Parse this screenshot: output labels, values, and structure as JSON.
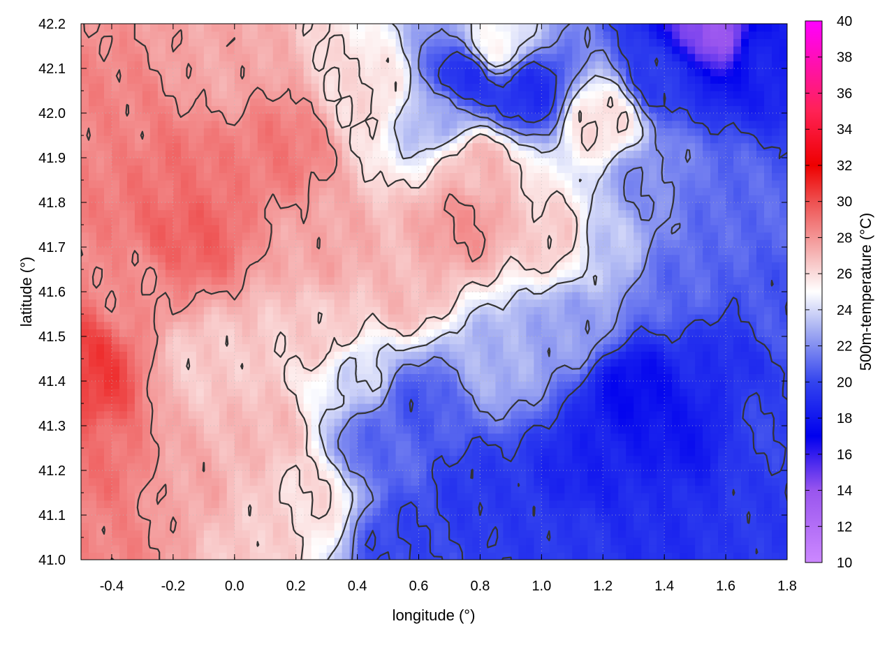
{
  "chart_data": {
    "type": "heatmap",
    "title": "",
    "xlabel": "longitude (°)",
    "ylabel": "latitude (°)",
    "colorbar_label": "500m-temperature (°C)",
    "xlim": [
      -0.5,
      1.8
    ],
    "ylim": [
      41.0,
      42.2
    ],
    "x_ticks": [
      "-0.4",
      "-0.2",
      "0.0",
      "0.2",
      "0.4",
      "0.6",
      "0.8",
      "1.0",
      "1.2",
      "1.4",
      "1.6",
      "1.8"
    ],
    "x_tick_values": [
      -0.4,
      -0.2,
      0.0,
      0.2,
      0.4,
      0.6,
      0.8,
      1.0,
      1.2,
      1.4,
      1.6,
      1.8
    ],
    "y_ticks": [
      "41.0",
      "41.1",
      "41.2",
      "41.3",
      "41.4",
      "41.5",
      "41.6",
      "41.7",
      "41.8",
      "41.9",
      "42.0",
      "42.1",
      "42.2"
    ],
    "y_tick_values": [
      41.0,
      41.1,
      41.2,
      41.3,
      41.4,
      41.5,
      41.6,
      41.7,
      41.8,
      41.9,
      42.0,
      42.1,
      42.2
    ],
    "colorbar_ticks": [
      "10",
      "12",
      "14",
      "16",
      "18",
      "20",
      "22",
      "24",
      "26",
      "28",
      "30",
      "32",
      "34",
      "36",
      "38",
      "40"
    ],
    "colorbar_tick_values": [
      10,
      12,
      14,
      16,
      18,
      20,
      22,
      24,
      26,
      28,
      30,
      32,
      34,
      36,
      38,
      40
    ],
    "clim": [
      10,
      40
    ],
    "grid": true,
    "colormap": {
      "stops": [
        {
          "value": 10,
          "color": "#cc88ff"
        },
        {
          "value": 14,
          "color": "#9955ee"
        },
        {
          "value": 17,
          "color": "#0000ee"
        },
        {
          "value": 20,
          "color": "#3344ee"
        },
        {
          "value": 23,
          "color": "#aab3f2"
        },
        {
          "value": 25,
          "color": "#ffffff"
        },
        {
          "value": 27,
          "color": "#f6b8b8"
        },
        {
          "value": 30,
          "color": "#ee5050"
        },
        {
          "value": 32,
          "color": "#ee0000"
        },
        {
          "value": 35,
          "color": "#ff2255"
        },
        {
          "value": 40,
          "color": "#ff00ff"
        }
      ]
    },
    "field_anchors": [
      {
        "lon": -0.48,
        "lat": 41.42,
        "value": 30.5
      },
      {
        "lon": -0.45,
        "lat": 41.2,
        "value": 29.0
      },
      {
        "lon": -0.4,
        "lat": 41.05,
        "value": 28.5
      },
      {
        "lon": -0.3,
        "lat": 41.6,
        "value": 28.2
      },
      {
        "lon": -0.15,
        "lat": 41.72,
        "value": 29.5
      },
      {
        "lon": -0.2,
        "lat": 41.88,
        "value": 29.0
      },
      {
        "lon": -0.35,
        "lat": 41.98,
        "value": 28.5
      },
      {
        "lon": -0.05,
        "lat": 42.1,
        "value": 27.5
      },
      {
        "lon": 0.15,
        "lat": 41.92,
        "value": 28.8
      },
      {
        "lon": 0.3,
        "lat": 41.7,
        "value": 27.5
      },
      {
        "lon": -0.1,
        "lat": 41.45,
        "value": 26.5
      },
      {
        "lon": 0.1,
        "lat": 41.28,
        "value": 27.0
      },
      {
        "lon": -0.15,
        "lat": 41.15,
        "value": 27.5
      },
      {
        "lon": 0.05,
        "lat": 41.05,
        "value": 26.5
      },
      {
        "lon": 0.25,
        "lat": 41.15,
        "value": 26.0
      },
      {
        "lon": 0.3,
        "lat": 41.5,
        "value": 26.5
      },
      {
        "lon": 0.55,
        "lat": 41.6,
        "value": 27.0
      },
      {
        "lon": 0.75,
        "lat": 41.75,
        "value": 28.0
      },
      {
        "lon": 0.8,
        "lat": 41.88,
        "value": 27.0
      },
      {
        "lon": 1.05,
        "lat": 41.72,
        "value": 26.5
      },
      {
        "lon": 0.45,
        "lat": 42.05,
        "value": 26.0
      },
      {
        "lon": 0.65,
        "lat": 42.0,
        "value": 23.0
      },
      {
        "lon": 0.75,
        "lat": 42.08,
        "value": 19.0
      },
      {
        "lon": 0.95,
        "lat": 42.05,
        "value": 19.0
      },
      {
        "lon": 0.85,
        "lat": 42.15,
        "value": 25.0
      },
      {
        "lon": 1.2,
        "lat": 41.98,
        "value": 26.0
      },
      {
        "lon": 1.4,
        "lat": 42.08,
        "value": 19.5
      },
      {
        "lon": 1.55,
        "lat": 42.18,
        "value": 14.0
      },
      {
        "lon": 1.75,
        "lat": 42.12,
        "value": 18.5
      },
      {
        "lon": 1.35,
        "lat": 41.85,
        "value": 22.0
      },
      {
        "lon": 1.6,
        "lat": 41.8,
        "value": 21.0
      },
      {
        "lon": 1.45,
        "lat": 41.62,
        "value": 21.0
      },
      {
        "lon": 1.75,
        "lat": 41.55,
        "value": 20.5
      },
      {
        "lon": 1.2,
        "lat": 41.7,
        "value": 23.5
      },
      {
        "lon": 1.1,
        "lat": 41.52,
        "value": 22.5
      },
      {
        "lon": 0.85,
        "lat": 41.45,
        "value": 23.0
      },
      {
        "lon": 0.6,
        "lat": 41.35,
        "value": 20.5
      },
      {
        "lon": 0.45,
        "lat": 41.25,
        "value": 21.0
      },
      {
        "lon": 0.55,
        "lat": 41.05,
        "value": 20.0
      },
      {
        "lon": 0.8,
        "lat": 41.15,
        "value": 19.5
      },
      {
        "lon": 1.3,
        "lat": 41.38,
        "value": 17.5
      },
      {
        "lon": 1.45,
        "lat": 41.28,
        "value": 18.0
      },
      {
        "lon": 1.15,
        "lat": 41.2,
        "value": 18.5
      },
      {
        "lon": 1.4,
        "lat": 41.1,
        "value": 19.0
      },
      {
        "lon": 1.7,
        "lat": 41.1,
        "value": 19.5
      },
      {
        "lon": 1.75,
        "lat": 41.3,
        "value": 20.0
      },
      {
        "lon": 1.6,
        "lat": 41.45,
        "value": 19.0
      },
      {
        "lon": 1.05,
        "lat": 41.05,
        "value": 19.5
      },
      {
        "lon": 0.4,
        "lat": 41.42,
        "value": 24.0
      }
    ],
    "contour_levels": [
      20,
      22,
      24,
      26,
      28
    ],
    "contour_color": "#333333"
  }
}
